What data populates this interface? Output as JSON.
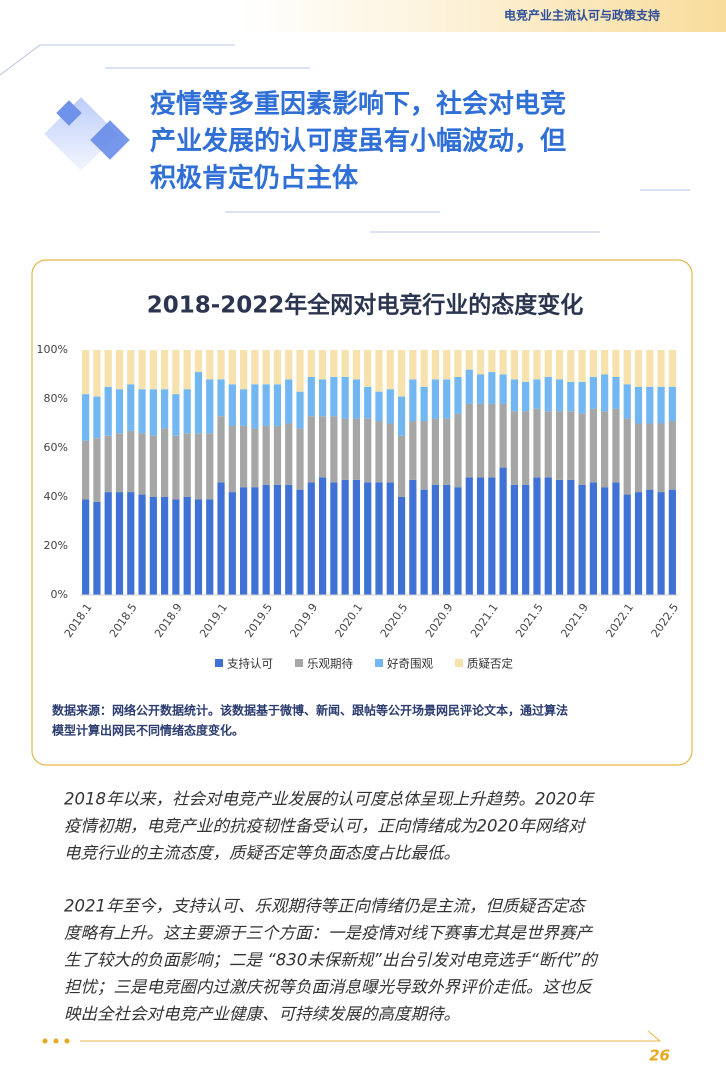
{
  "header": {
    "banner": "电竞产业主流认可与政策支持"
  },
  "title": {
    "lines": [
      "疫情等多重因素影响下，社会对电竞",
      "产业发展的认可度虽有小幅波动，但",
      "积极肯定仍占主体"
    ]
  },
  "chart_data": {
    "type": "stacked_bar",
    "title": "2018-2022年全网对电竞行业的态度变化",
    "categories": [
      "2018.1",
      null,
      null,
      null,
      "2018.5",
      null,
      null,
      null,
      "2018.9",
      null,
      null,
      null,
      "2019.1",
      null,
      null,
      null,
      "2019.5",
      null,
      null,
      null,
      "2019.9",
      null,
      null,
      null,
      "2020.1",
      null,
      null,
      null,
      "2020.5",
      null,
      null,
      null,
      "2020.9",
      null,
      null,
      null,
      "2021.1",
      null,
      null,
      null,
      "2021.5",
      null,
      null,
      null,
      "2021.9",
      null,
      null,
      null,
      "2022.1",
      null,
      null,
      null,
      "2022.5"
    ],
    "series": [
      {
        "name": "支持认可",
        "color": "#3f72d4",
        "values": [
          39,
          38,
          42,
          42,
          42,
          41,
          40,
          40,
          39,
          40,
          39,
          39,
          46,
          42,
          44,
          44,
          45,
          45,
          45,
          43,
          46,
          48,
          46,
          47,
          47,
          46,
          46,
          46,
          40,
          47,
          43,
          45,
          45,
          44,
          48,
          48,
          48,
          52,
          45,
          45,
          48,
          48,
          47,
          47,
          45,
          46,
          44,
          46,
          41,
          42,
          43,
          42,
          43
        ]
      },
      {
        "name": "乐观期待",
        "color": "#a6a6a6",
        "values": [
          24,
          26,
          23,
          24,
          25,
          25,
          25,
          28,
          26,
          26,
          27,
          27,
          27,
          27,
          25,
          24,
          24,
          24,
          25,
          25,
          27,
          25,
          27,
          25,
          25,
          26,
          25,
          24,
          25,
          24,
          28,
          27,
          27,
          30,
          30,
          30,
          30,
          26,
          30,
          30,
          28,
          27,
          28,
          28,
          29,
          30,
          31,
          30,
          31,
          28,
          27,
          28,
          28
        ]
      },
      {
        "name": "好奇围观",
        "color": "#72b7f2",
        "values": [
          19,
          17,
          20,
          18,
          19,
          18,
          19,
          16,
          17,
          18,
          25,
          22,
          15,
          17,
          15,
          18,
          17,
          17,
          18,
          15,
          16,
          15,
          16,
          17,
          16,
          13,
          12,
          14,
          16,
          17,
          14,
          16,
          16,
          15,
          14,
          12,
          13,
          12,
          13,
          12,
          12,
          14,
          13,
          12,
          13,
          13,
          15,
          13,
          14,
          15,
          15,
          15,
          14
        ]
      },
      {
        "name": "质疑否定",
        "color": "#f7e2ae",
        "values": [
          18,
          19,
          15,
          16,
          14,
          16,
          16,
          16,
          18,
          16,
          9,
          12,
          12,
          14,
          16,
          14,
          14,
          14,
          12,
          17,
          11,
          12,
          11,
          11,
          12,
          15,
          17,
          16,
          19,
          12,
          15,
          12,
          12,
          11,
          8,
          10,
          9,
          10,
          12,
          13,
          12,
          11,
          12,
          13,
          13,
          11,
          10,
          11,
          14,
          15,
          15,
          15,
          15
        ]
      }
    ],
    "ylim": [
      0,
      100
    ],
    "yticks": [
      {
        "value": 0,
        "label": "0%"
      },
      {
        "value": 20,
        "label": "20%"
      },
      {
        "value": 40,
        "label": "40%"
      },
      {
        "value": 60,
        "label": "60%"
      },
      {
        "value": 80,
        "label": "80%"
      },
      {
        "value": 100,
        "label": "100%"
      }
    ],
    "legend": "bottom",
    "source": [
      "数据来源：网络公开数据统计。该数据基于微博、新闻、跟帖等公开场景网民评论文本，通过算法",
      "模型计算出网民不同情绪态度变化。"
    ]
  },
  "body": {
    "paragraphs": [
      [
        "2018年以来，社会对电竞产业发展的认可度总体呈现上升趋势。2020年",
        "疫情初期，电竞产业的抗疫韧性备受认可，正向情绪成为2020年网络对",
        "电竞行业的主流态度，质疑否定等负面态度占比最低。"
      ],
      [
        "2021年至今，支持认可、乐观期待等正向情绪仍是主流，但质疑否定态",
        "度略有上升。这主要源于三个方面：一是疫情对线下赛事尤其是世界赛产",
        "生了较大的负面影响；二是 “830未保新规”出台引发对电竞选手“断代”的",
        "担忧；三是电竞圈内过激庆祝等负面消息曝光导致外界评价走低。这也反",
        "映出全社会对电竞产业健康、可持续发展的高度期待。"
      ]
    ]
  },
  "footer": {
    "page": "26"
  }
}
